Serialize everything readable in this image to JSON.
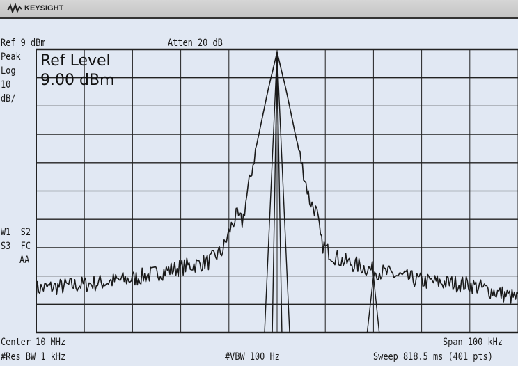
{
  "header": {
    "brand": "KEYSIGHT",
    "logo_icon": "keysight-wave-icon"
  },
  "annotations": {
    "ref": "Ref 9 dBm",
    "atten": "Atten 20 dB",
    "detector": "Peak",
    "scale_type": "Log",
    "scale_value": "10",
    "scale_unit": "dB/",
    "flags_1": "W1  S2",
    "flags_2": "S3  FC",
    "flags_3": "AA",
    "active_function_label": "Ref Level",
    "active_function_value": "9.00 dBm",
    "center": "Center 10 MHz",
    "span": "Span 100 kHz",
    "rbw": "#Res BW 1 kHz",
    "vbw": "#VBW 100 Hz",
    "sweep": "Sweep 818.5 ms (401 pts)"
  },
  "colors": {
    "background": "#e1e8f3",
    "trace": "#1a1a1a",
    "grid": "#222222"
  },
  "chart_data": {
    "type": "line",
    "x_unit": "kHz offset from 10 MHz",
    "y_unit": "dBm",
    "xlim": [
      -50,
      50
    ],
    "ylim": [
      -91,
      9
    ],
    "grid": true,
    "divisions": {
      "x": 10,
      "y": 10
    },
    "series": [
      {
        "points": [
          [
            -50,
            -75.5
          ],
          [
            -40,
            -74
          ],
          [
            -30,
            -72
          ],
          [
            -20,
            -68
          ],
          [
            -14.2,
            -66
          ],
          [
            -11.3,
            -62
          ],
          [
            -9.5,
            -53.4
          ],
          [
            -8.4,
            -49.7
          ],
          [
            -7.2,
            -52
          ],
          [
            -6.2,
            -42
          ],
          [
            -4,
            -22.7
          ],
          [
            -1.9,
            -5.5
          ],
          [
            0,
            8
          ],
          [
            1.9,
            -5.5
          ],
          [
            4,
            -22.7
          ],
          [
            6.8,
            -44.6
          ],
          [
            8.2,
            -48.5
          ],
          [
            9.2,
            -59.5
          ],
          [
            11,
            -63
          ],
          [
            13.2,
            -65.5
          ],
          [
            20,
            -69
          ],
          [
            30,
            -72.8
          ],
          [
            40,
            -74
          ],
          [
            50,
            -79
          ]
        ]
      },
      {
        "points": [
          [
            -50,
            -91
          ],
          [
            -2.6,
            -91
          ],
          [
            0,
            8
          ],
          [
            2.6,
            -91
          ],
          [
            18.7,
            -91
          ],
          [
            20,
            -71
          ],
          [
            21.2,
            -91
          ],
          [
            50,
            -91
          ]
        ]
      },
      {
        "points": [
          [
            -1,
            -91
          ],
          [
            0,
            6
          ],
          [
            1,
            -91
          ]
        ]
      }
    ]
  }
}
